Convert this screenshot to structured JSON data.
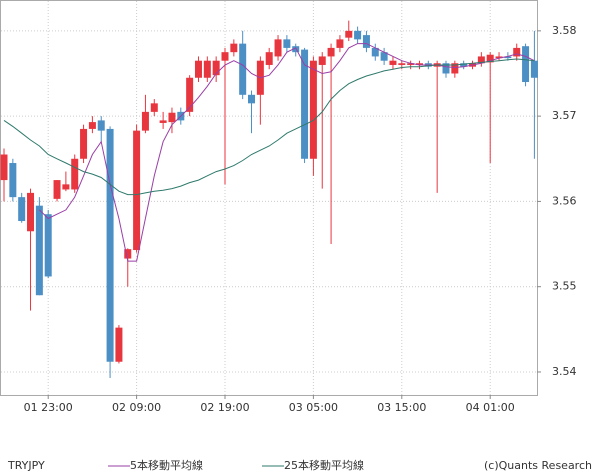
{
  "chart_data": {
    "type": "candlestick",
    "symbol": "TRYJPY",
    "credit": "(c)Quants Research",
    "up_color": "#e8363f",
    "down_color": "#4b8fc4",
    "grid": true,
    "ylim": [
      3.5373,
      3.5835
    ],
    "yticks": [
      3.54,
      3.55,
      3.56,
      3.57,
      3.58
    ],
    "categories": [
      null,
      null,
      null,
      null,
      null,
      "01 23:00",
      null,
      null,
      null,
      null,
      null,
      null,
      null,
      null,
      null,
      "02 09:00",
      null,
      null,
      null,
      null,
      null,
      null,
      null,
      null,
      null,
      "02 19:00",
      null,
      null,
      null,
      null,
      null,
      null,
      null,
      null,
      null,
      "03 05:00",
      null,
      null,
      null,
      null,
      null,
      null,
      null,
      null,
      null,
      "03 15:00",
      null,
      null,
      null,
      null,
      null,
      null,
      null,
      null,
      null,
      "04 01:00",
      null,
      null,
      null,
      null,
      null
    ],
    "ohlc": [
      [
        3.5625,
        3.5662,
        3.56,
        3.5655
      ],
      [
        3.5645,
        3.565,
        3.56,
        3.5605
      ],
      [
        3.5605,
        3.561,
        3.5575,
        3.5577
      ],
      [
        3.5565,
        3.5615,
        3.5472,
        3.561
      ],
      [
        3.5595,
        3.5605,
        3.549,
        3.549
      ],
      [
        3.5585,
        3.559,
        3.551,
        3.5512
      ],
      [
        3.5603,
        3.5625,
        3.56,
        3.5625
      ],
      [
        3.5614,
        3.5635,
        3.5612,
        3.562
      ],
      [
        3.5614,
        3.5655,
        3.561,
        3.565
      ],
      [
        3.565,
        3.569,
        3.5645,
        3.5685
      ],
      [
        3.5685,
        3.57,
        3.568,
        3.5693
      ],
      [
        3.5695,
        3.57,
        3.567,
        3.5683
      ],
      [
        3.5685,
        3.5688,
        3.5393,
        3.5412
      ],
      [
        3.5412,
        3.5455,
        3.541,
        3.5452
      ],
      [
        3.5533,
        3.5545,
        3.55,
        3.5544
      ],
      [
        3.5543,
        3.569,
        3.554,
        3.5683
      ],
      [
        3.5683,
        3.5725,
        3.568,
        3.5705
      ],
      [
        3.5705,
        3.572,
        3.57,
        3.5715
      ],
      [
        3.5692,
        3.5705,
        3.5685,
        3.5695
      ],
      [
        3.5693,
        3.571,
        3.568,
        3.5704
      ],
      [
        3.5705,
        3.571,
        3.569,
        3.5695
      ],
      [
        3.5705,
        3.5748,
        3.57,
        3.5745
      ],
      [
        3.5745,
        3.577,
        3.574,
        3.5765
      ],
      [
        3.5745,
        3.577,
        3.574,
        3.5765
      ],
      [
        3.5748,
        3.577,
        3.574,
        3.5765
      ],
      [
        3.5765,
        3.578,
        3.562,
        3.5775
      ],
      [
        3.5775,
        3.579,
        3.577,
        3.5785
      ],
      [
        3.5785,
        3.58,
        3.572,
        3.5725
      ],
      [
        3.5725,
        3.573,
        3.568,
        3.5715
      ],
      [
        3.5725,
        3.577,
        3.569,
        3.5765
      ],
      [
        3.576,
        3.578,
        3.5755,
        3.5775
      ],
      [
        3.577,
        3.5795,
        3.5765,
        3.579
      ],
      [
        3.579,
        3.5795,
        3.5775,
        3.578
      ],
      [
        3.5782,
        3.5785,
        3.577,
        3.5775
      ],
      [
        3.5778,
        3.578,
        3.5645,
        3.565
      ],
      [
        3.565,
        3.577,
        3.563,
        3.5765
      ],
      [
        3.576,
        3.5775,
        3.5615,
        3.577
      ],
      [
        3.577,
        3.5785,
        3.555,
        3.578
      ],
      [
        3.578,
        3.5795,
        3.5775,
        3.579
      ],
      [
        3.5792,
        3.5812,
        3.5788,
        3.58
      ],
      [
        3.58,
        3.5805,
        3.5785,
        3.579
      ],
      [
        3.5795,
        3.58,
        3.5775,
        3.578
      ],
      [
        3.578,
        3.5785,
        3.5765,
        3.577
      ],
      [
        3.5775,
        3.578,
        3.576,
        3.5765
      ],
      [
        3.576,
        3.577,
        3.5755,
        3.5765
      ],
      [
        3.576,
        3.5765,
        3.5755,
        3.5762
      ],
      [
        3.576,
        3.5765,
        3.5755,
        3.5762
      ],
      [
        3.576,
        3.5765,
        3.5755,
        3.5762
      ],
      [
        3.5762,
        3.5765,
        3.5755,
        3.5758
      ],
      [
        3.5758,
        3.5765,
        3.561,
        3.5762
      ],
      [
        3.5762,
        3.5765,
        3.5745,
        3.575
      ],
      [
        3.575,
        3.5765,
        3.5745,
        3.5762
      ],
      [
        3.5762,
        3.5765,
        3.5755,
        3.5758
      ],
      [
        3.5758,
        3.5765,
        3.5755,
        3.5762
      ],
      [
        3.5762,
        3.5775,
        3.5758,
        3.577
      ],
      [
        3.5763,
        3.5775,
        3.5645,
        3.5772
      ],
      [
        3.5768,
        3.5775,
        3.5765,
        3.577
      ],
      [
        3.577,
        3.5775,
        3.5765,
        3.5768
      ],
      [
        3.577,
        3.5785,
        3.5765,
        3.578
      ],
      [
        3.5782,
        3.5785,
        3.5735,
        3.574
      ],
      [
        3.5765,
        3.58,
        3.565,
        3.5745
      ]
    ],
    "series": [
      {
        "name": "5本移動平均線",
        "color": "#9a3fa6",
        "values": [
          null,
          null,
          null,
          null,
          3.559,
          3.558,
          3.5585,
          3.559,
          3.5605,
          3.563,
          3.5655,
          3.567,
          3.562,
          3.558,
          3.553,
          3.553,
          3.558,
          3.563,
          3.567,
          3.569,
          3.57,
          3.571,
          3.5722,
          3.5735,
          3.575,
          3.576,
          3.5765,
          3.576,
          3.575,
          3.5745,
          3.5748,
          3.576,
          3.5775,
          3.578,
          3.576,
          3.5755,
          3.575,
          3.5752,
          3.5765,
          3.578,
          3.5785,
          3.5785,
          3.578,
          3.5775,
          3.577,
          3.5765,
          3.5762,
          3.576,
          3.576,
          3.576,
          3.5758,
          3.5757,
          3.5758,
          3.576,
          3.5762,
          3.5765,
          3.5768,
          3.577,
          3.5773,
          3.577,
          3.5765
        ]
      },
      {
        "name": "25本移動平均線",
        "color": "#2f7a6c",
        "values": [
          3.5695,
          3.5688,
          3.568,
          3.5672,
          3.5665,
          3.5655,
          3.565,
          3.5645,
          3.564,
          3.5635,
          3.5632,
          3.5628,
          3.562,
          3.5612,
          3.5608,
          3.5608,
          3.561,
          3.5612,
          3.5613,
          3.5615,
          3.5618,
          3.5622,
          3.5625,
          3.563,
          3.5635,
          3.5638,
          3.5642,
          3.5648,
          3.5655,
          3.566,
          3.5665,
          3.5672,
          3.568,
          3.5685,
          3.569,
          3.5695,
          3.5705,
          3.572,
          3.573,
          3.5738,
          3.5743,
          3.5747,
          3.575,
          3.5753,
          3.5755,
          3.5757,
          3.5758,
          3.5758,
          3.5759,
          3.576,
          3.576,
          3.576,
          3.5761,
          3.5762,
          3.5763,
          3.5764,
          3.5765,
          3.5766,
          3.5767,
          3.5766,
          3.5765
        ]
      }
    ]
  }
}
